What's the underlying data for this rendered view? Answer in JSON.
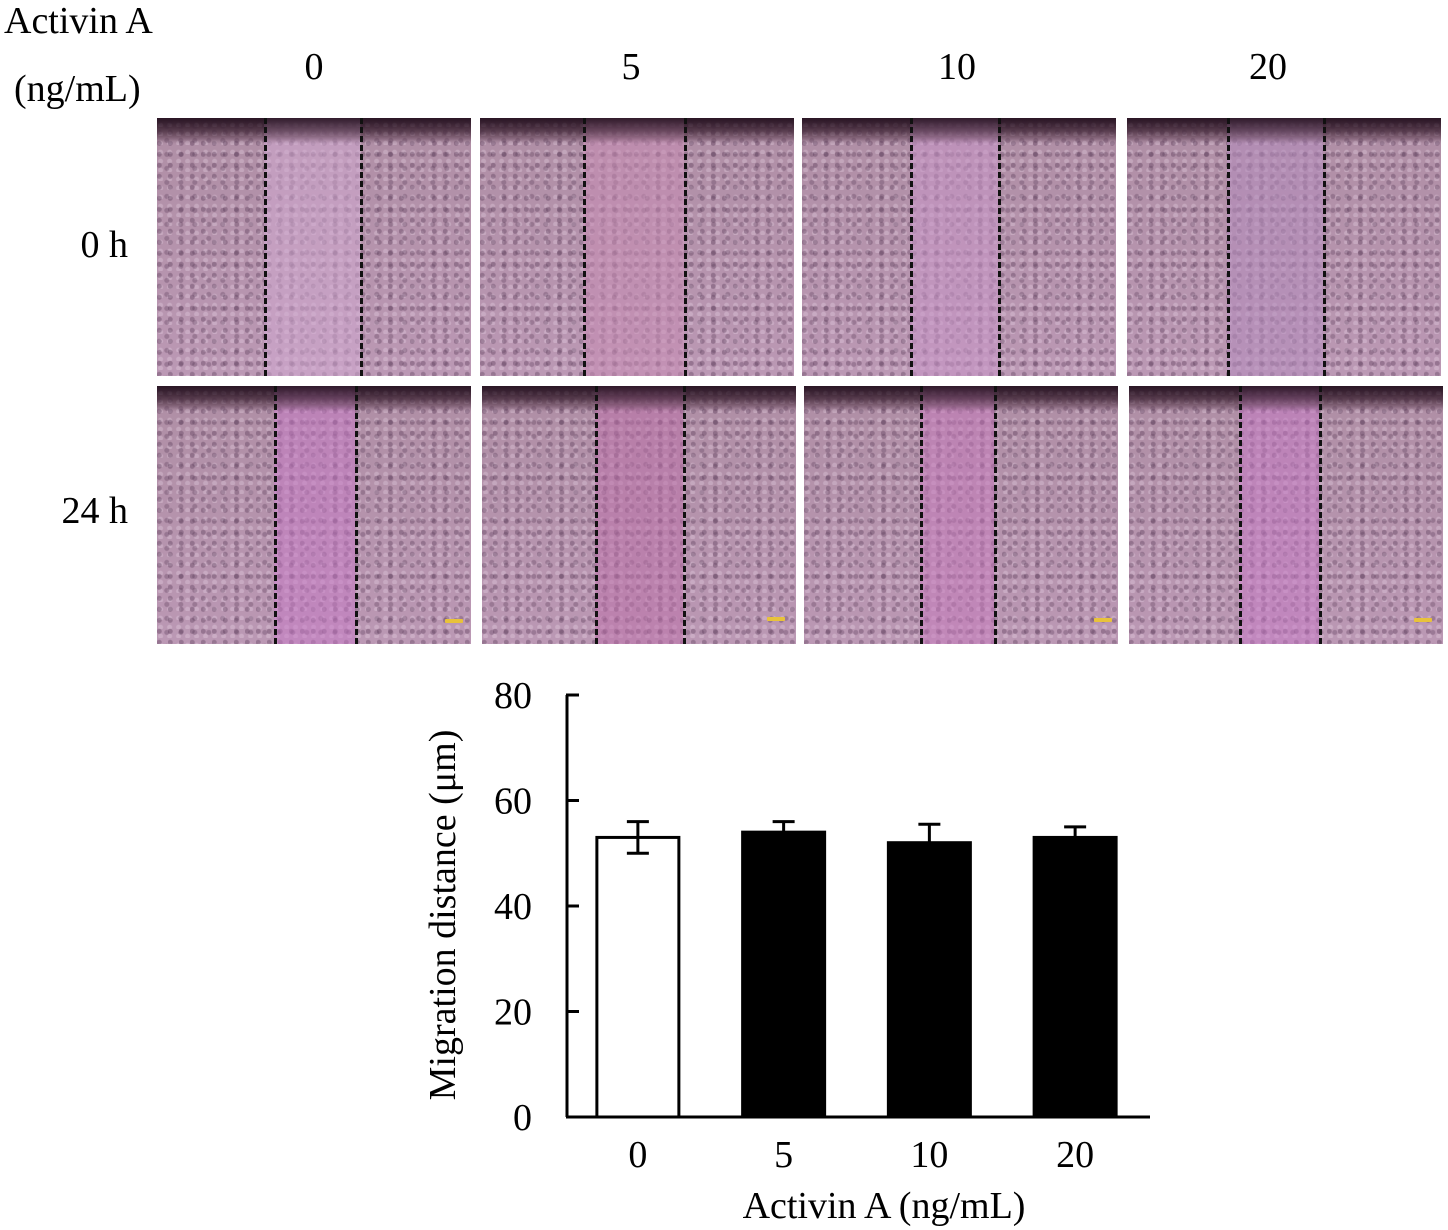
{
  "header": {
    "row_label_line1": "Activin A",
    "row_label_line2": "(ng/mL)",
    "concentrations": [
      "0",
      "5",
      "10",
      "20"
    ]
  },
  "time_rows": [
    "0 h",
    "24 h"
  ],
  "colors": {
    "panel_tint": "#bb98b4",
    "panel_dark": "#3f2735",
    "scale_bar": "#e8c23a",
    "bar_control": "#ffffff",
    "bar_treated": "#000000"
  },
  "chart_data": {
    "type": "bar",
    "categories": [
      "0",
      "5",
      "10",
      "20"
    ],
    "values": [
      53,
      54,
      52,
      53
    ],
    "errors": [
      3,
      2,
      3.5,
      2
    ],
    "bar_fills": [
      "#ffffff",
      "#000000",
      "#000000",
      "#000000"
    ],
    "title": "",
    "xlabel": "Activin A (ng/mL)",
    "ylabel": "Migration distance (μm)",
    "ylim": [
      0,
      80
    ],
    "yticks": [
      "0",
      "20",
      "40",
      "60",
      "80"
    ],
    "grid": false,
    "legend": "none"
  }
}
